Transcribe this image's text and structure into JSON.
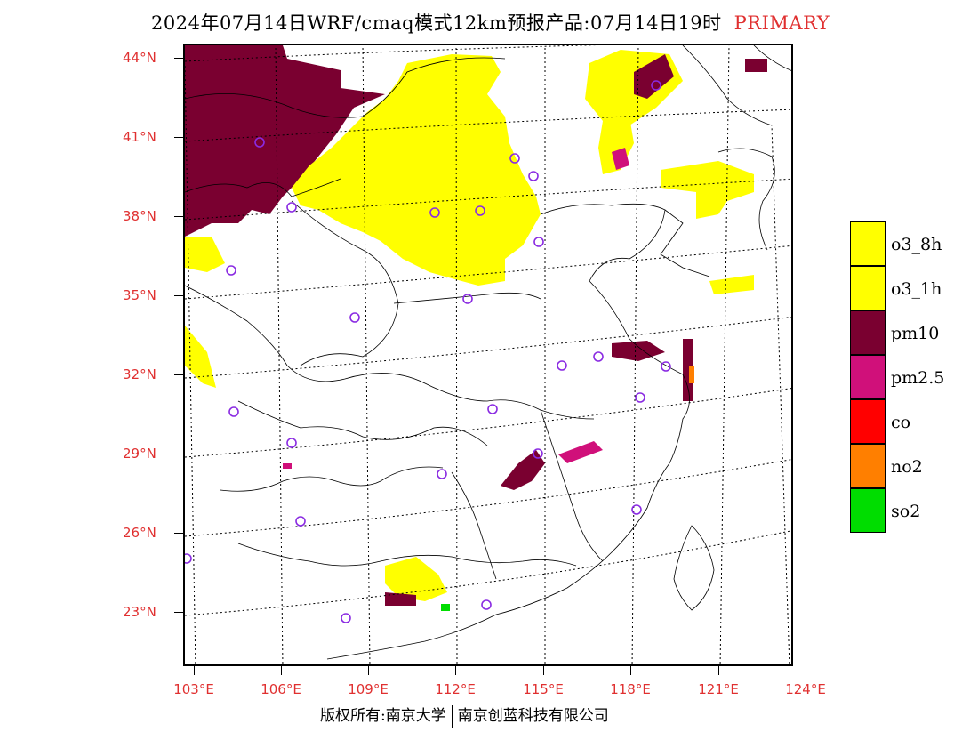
{
  "title": "2024年07月14日WRF/cmaq模式12km预报产品:07月14日19时",
  "product": "PRIMARY",
  "lat_labels": [
    "44°N",
    "41°N",
    "38°N",
    "35°N",
    "32°N",
    "29°N",
    "26°N",
    "23°N"
  ],
  "lon_labels": [
    "103°E",
    "106°E",
    "109°E",
    "112°E",
    "115°E",
    "118°E",
    "121°E",
    "124°E"
  ],
  "legend": [
    {
      "label": "o3_8h",
      "color": "#ffff00"
    },
    {
      "label": "o3_1h",
      "color": "#ffff00"
    },
    {
      "label": "pm10",
      "color": "#7a0030"
    },
    {
      "label": "pm2.5",
      "color": "#d0107a"
    },
    {
      "label": "co",
      "color": "#ff0000"
    },
    {
      "label": "no2",
      "color": "#ff7f00"
    },
    {
      "label": "so2",
      "color": "#00dd00"
    }
  ],
  "footer": {
    "left": "版权所有:南京大学",
    "right": "南京创蓝科技有限公司"
  }
}
